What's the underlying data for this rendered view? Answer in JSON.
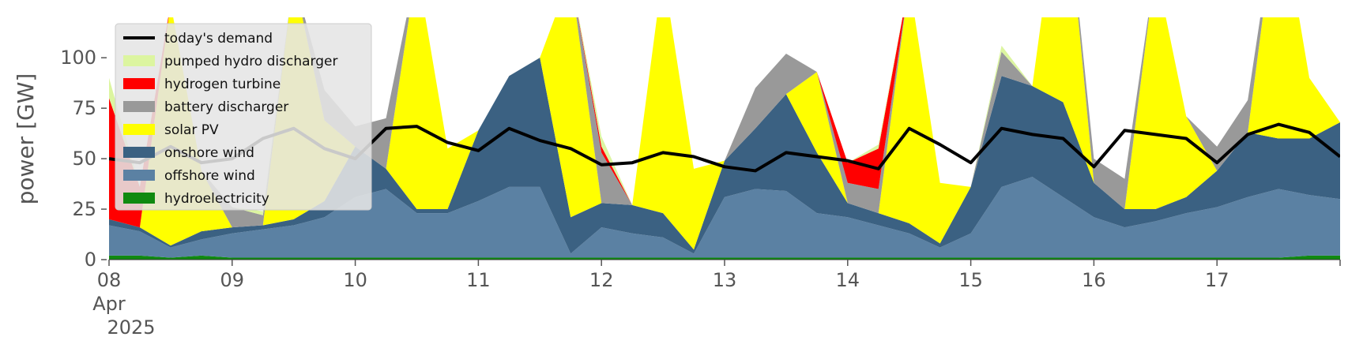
{
  "chart_data": {
    "type": "area",
    "title": "",
    "xlabel": "",
    "ylabel": "power [GW]",
    "ylim": [
      0,
      120
    ],
    "xlim": [
      0,
      10
    ],
    "grid": false,
    "legend_position": "top-left",
    "x_ticks": [
      {
        "value": 0,
        "label": "08",
        "sub1": "Apr",
        "sub2": "2025"
      },
      {
        "value": 1,
        "label": "09"
      },
      {
        "value": 2,
        "label": "10"
      },
      {
        "value": 3,
        "label": "11"
      },
      {
        "value": 4,
        "label": "12"
      },
      {
        "value": 5,
        "label": "13"
      },
      {
        "value": 6,
        "label": "14"
      },
      {
        "value": 7,
        "label": "15"
      },
      {
        "value": 8,
        "label": "16"
      },
      {
        "value": 9,
        "label": "17"
      }
    ],
    "y_ticks": [
      0,
      25,
      50,
      75,
      100
    ],
    "stack_order": [
      "hydroelectricity",
      "offshore wind",
      "onshore wind",
      "solar PV",
      "battery discharger",
      "hydrogen turbine",
      "pumped hydro discharger"
    ],
    "legend_order": [
      "today's demand",
      "pumped hydro discharger",
      "hydrogen turbine",
      "battery discharger",
      "solar PV",
      "onshore wind",
      "offshore wind",
      "hydroelectricity"
    ],
    "colors": {
      "today's demand": "#000000",
      "pumped hydro discharger": "#dcf5a0",
      "hydrogen turbine": "#ff0000",
      "battery discharger": "#999999",
      "solar PV": "#ffff00",
      "onshore wind": "#3b6182",
      "offshore wind": "#5b81a3",
      "hydroelectricity": "#108a10"
    },
    "x": [
      0.0,
      0.25,
      0.5,
      0.75,
      1.0,
      1.25,
      1.5,
      1.75,
      2.0,
      2.25,
      2.5,
      2.75,
      3.0,
      3.25,
      3.5,
      3.75,
      4.0,
      4.25,
      4.5,
      4.75,
      5.0,
      5.25,
      5.5,
      5.75,
      6.0,
      6.25,
      6.5,
      6.75,
      7.0,
      7.25,
      7.5,
      7.75,
      8.0,
      8.25,
      8.5,
      8.75,
      9.0,
      9.25,
      9.5,
      9.75,
      10.0
    ],
    "series": [
      {
        "name": "hydroelectricity",
        "values": [
          2,
          2,
          1,
          2,
          1,
          1,
          1,
          1,
          1,
          1,
          1,
          1,
          1,
          1,
          1,
          1,
          1,
          1,
          1,
          1,
          1,
          1,
          1,
          1,
          1,
          1,
          1,
          1,
          1,
          1,
          1,
          1,
          1,
          1,
          1,
          1,
          1,
          1,
          1,
          2,
          2
        ]
      },
      {
        "name": "offshore wind",
        "values": [
          15,
          12,
          5,
          8,
          12,
          14,
          16,
          20,
          30,
          34,
          22,
          22,
          28,
          35,
          35,
          2,
          15,
          12,
          10,
          2,
          30,
          34,
          33,
          22,
          20,
          16,
          12,
          5,
          12,
          35,
          40,
          30,
          20,
          15,
          18,
          22,
          25,
          30,
          34,
          30,
          28
        ]
      },
      {
        "name": "onshore wind",
        "values": [
          3,
          2,
          1,
          4,
          3,
          2,
          3,
          8,
          25,
          10,
          2,
          2,
          35,
          55,
          64,
          18,
          12,
          14,
          12,
          2,
          18,
          30,
          48,
          30,
          7,
          6,
          5,
          2,
          23,
          55,
          45,
          47,
          17,
          9,
          6,
          8,
          18,
          32,
          25,
          28,
          38
        ]
      },
      {
        "name": "solar PV",
        "values": [
          0,
          0,
          120,
          30,
          0,
          0,
          120,
          40,
          0,
          0,
          120,
          30,
          0,
          0,
          0,
          120,
          0,
          0,
          120,
          40,
          0,
          0,
          0,
          40,
          0,
          0,
          120,
          30,
          0,
          0,
          0,
          120,
          0,
          0,
          120,
          40,
          0,
          0,
          120,
          30,
          0
        ]
      },
      {
        "name": "battery discharger",
        "values": [
          0,
          0,
          0,
          0,
          10,
          5,
          0,
          15,
          10,
          25,
          0,
          0,
          0,
          0,
          0,
          0,
          25,
          0,
          0,
          0,
          0,
          20,
          20,
          0,
          10,
          12,
          0,
          0,
          0,
          12,
          0,
          0,
          12,
          15,
          0,
          0,
          12,
          16,
          0,
          0,
          0
        ]
      },
      {
        "name": "hydrogen turbine",
        "values": [
          60,
          20,
          0,
          0,
          0,
          0,
          0,
          0,
          0,
          0,
          0,
          0,
          0,
          0,
          0,
          0,
          3,
          0,
          0,
          0,
          0,
          0,
          0,
          0,
          10,
          20,
          0,
          0,
          0,
          0,
          0,
          0,
          0,
          0,
          0,
          0,
          0,
          0,
          0,
          0,
          0
        ]
      },
      {
        "name": "pumped hydro discharger",
        "values": [
          10,
          0,
          0,
          0,
          0,
          2,
          0,
          0,
          0,
          0,
          0,
          0,
          0,
          0,
          0,
          0,
          5,
          0,
          0,
          0,
          0,
          0,
          0,
          0,
          0,
          2,
          0,
          0,
          0,
          3,
          0,
          0,
          0,
          0,
          0,
          0,
          0,
          0,
          0,
          0,
          0
        ]
      },
      {
        "name": "today's demand",
        "type": "line",
        "values": [
          50,
          48,
          56,
          48,
          50,
          60,
          65,
          55,
          50,
          65,
          66,
          58,
          54,
          65,
          59,
          55,
          47,
          48,
          53,
          51,
          46,
          44,
          53,
          51,
          49,
          45,
          65,
          57,
          48,
          65,
          62,
          60,
          46,
          64,
          62,
          60,
          48,
          62,
          67,
          63,
          51
        ]
      }
    ]
  }
}
